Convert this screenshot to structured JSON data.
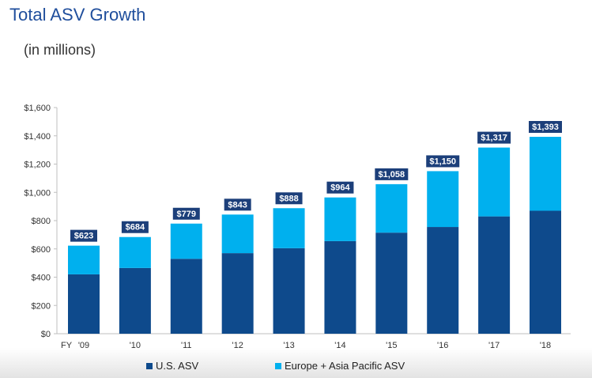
{
  "title": "Total ASV Growth",
  "subtitle": "(in millions)",
  "x_prefix": "FY",
  "colors": {
    "us": "#0e4a8c",
    "eu_ap": "#00b0ee",
    "label_bg": "#1c3f7a",
    "title": "#1f4e9c"
  },
  "chart_data": {
    "type": "bar",
    "stacked": true,
    "categories": [
      "'09",
      "'10",
      "'11",
      "'12",
      "'13",
      "'14",
      "'15",
      "'16",
      "'17",
      "'18"
    ],
    "series": [
      {
        "name": "U.S. ASV",
        "values": [
          420,
          465,
          530,
          570,
          605,
          655,
          715,
          755,
          830,
          870
        ]
      },
      {
        "name": "Europe + Asia Pacific ASV",
        "values": [
          203,
          219,
          249,
          273,
          283,
          309,
          343,
          395,
          487,
          523
        ]
      }
    ],
    "totals": [
      623,
      684,
      779,
      843,
      888,
      964,
      1058,
      1150,
      1317,
      1393
    ],
    "total_labels": [
      "$623",
      "$684",
      "$779",
      "$843",
      "$888",
      "$964",
      "$1,058",
      "$1,150",
      "$1,317",
      "$1,393"
    ],
    "ylim": [
      0,
      1600
    ],
    "yticks": [
      0,
      200,
      400,
      600,
      800,
      1000,
      1200,
      1400,
      1600
    ],
    "ytick_labels": [
      "$0",
      "$200",
      "$400",
      "$600",
      "$800",
      "$1,000",
      "$1,200",
      "$1,400",
      "$1,600"
    ],
    "grid": false,
    "legend": "bottom"
  }
}
